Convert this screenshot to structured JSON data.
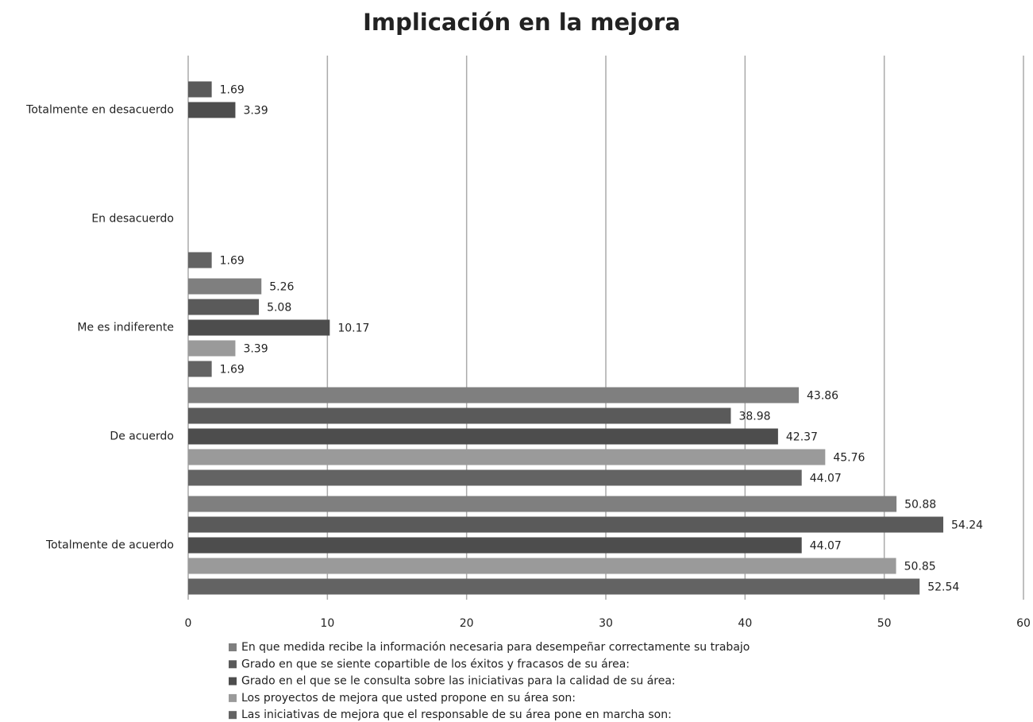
{
  "chart_data": {
    "type": "hbar",
    "title": "Implicación en la mejora",
    "categories": [
      "Totalmente en desacuerdo",
      "En desacuerdo",
      "Me es indiferente",
      "De acuerdo",
      "Totalmente de acuerdo"
    ],
    "series": [
      {
        "name": "En que medida recibe la información necesaria para desempeñar correctamente su trabajo",
        "color": "#7f7f7f",
        "values": [
          null,
          null,
          5.26,
          43.86,
          50.88
        ]
      },
      {
        "name": "Grado en que se siente copartible de los éxitos y fracasos de su área:",
        "color": "#5a5a5a",
        "values": [
          1.69,
          null,
          5.08,
          38.98,
          54.24
        ]
      },
      {
        "name": "Grado en el que se le consulta sobre las iniciativas para la calidad de su área:",
        "color": "#4d4d4d",
        "values": [
          3.39,
          null,
          10.17,
          42.37,
          44.07
        ]
      },
      {
        "name": "Los proyectos de mejora que usted propone en su área son:",
        "color": "#9a9a9a",
        "values": [
          null,
          null,
          3.39,
          45.76,
          50.85
        ]
      },
      {
        "name": "Las iniciativas de mejora que el responsable de su área pone en marcha son:",
        "color": "#636363",
        "values": [
          null,
          1.69,
          1.69,
          44.07,
          52.54
        ]
      }
    ],
    "xlim": [
      0,
      60
    ],
    "xticks": [
      0,
      10,
      20,
      30,
      40,
      50,
      60
    ],
    "grid": true,
    "legend": "bottom"
  }
}
